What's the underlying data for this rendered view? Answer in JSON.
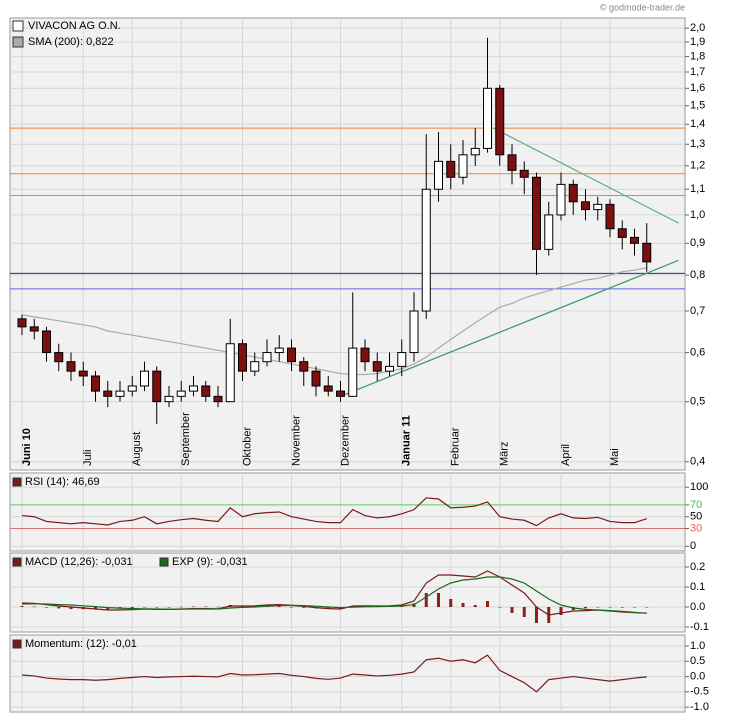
{
  "watermark": "© godmode-trader.de",
  "chart_data": [
    {
      "type": "candlestick",
      "name": "VIVACON AG O.N.",
      "log": true,
      "up_color": "#ffffff",
      "down_color": "#7a1010",
      "categories": [
        "Juni 10",
        null,
        null,
        null,
        null,
        "Juli",
        null,
        null,
        null,
        "August",
        null,
        null,
        null,
        "September",
        null,
        null,
        null,
        null,
        "Oktober",
        null,
        null,
        null,
        "November",
        null,
        null,
        null,
        "Dezember",
        null,
        null,
        null,
        null,
        "Januar 11",
        null,
        null,
        null,
        "Februar",
        null,
        null,
        null,
        "März",
        null,
        null,
        null,
        null,
        "April",
        null,
        null,
        null,
        "Mai",
        null,
        null,
        null
      ],
      "bold_labels": [
        0,
        31
      ],
      "open": [
        0.68,
        0.66,
        0.65,
        0.6,
        0.58,
        0.56,
        0.55,
        0.52,
        0.51,
        0.52,
        0.53,
        0.56,
        0.5,
        0.51,
        0.52,
        0.53,
        0.51,
        0.5,
        0.62,
        0.56,
        0.58,
        0.6,
        0.61,
        0.58,
        0.56,
        0.53,
        0.52,
        0.51,
        0.61,
        0.58,
        0.56,
        0.57,
        0.6,
        0.7,
        1.1,
        1.22,
        1.15,
        1.25,
        1.28,
        1.6,
        1.25,
        1.18,
        1.15,
        0.88,
        1.0,
        1.12,
        1.05,
        1.02,
        1.04,
        0.95,
        0.92,
        0.9
      ],
      "high": [
        0.69,
        0.68,
        0.66,
        0.62,
        0.6,
        0.58,
        0.56,
        0.54,
        0.54,
        0.55,
        0.58,
        0.57,
        0.53,
        0.54,
        0.55,
        0.54,
        0.53,
        0.68,
        0.63,
        0.6,
        0.63,
        0.64,
        0.63,
        0.59,
        0.57,
        0.55,
        0.54,
        0.75,
        0.63,
        0.6,
        0.6,
        0.63,
        0.75,
        1.35,
        1.36,
        1.3,
        1.32,
        1.38,
        1.93,
        1.62,
        1.3,
        1.22,
        1.17,
        1.05,
        1.17,
        1.14,
        1.1,
        1.07,
        1.06,
        0.98,
        0.95,
        0.97
      ],
      "low": [
        0.64,
        0.63,
        0.58,
        0.56,
        0.54,
        0.53,
        0.5,
        0.49,
        0.5,
        0.51,
        0.52,
        0.46,
        0.49,
        0.5,
        0.51,
        0.5,
        0.49,
        0.5,
        0.54,
        0.55,
        0.57,
        0.58,
        0.56,
        0.53,
        0.51,
        0.51,
        0.5,
        0.51,
        0.56,
        0.54,
        0.55,
        0.55,
        0.58,
        0.68,
        1.05,
        1.1,
        1.12,
        1.2,
        1.26,
        1.2,
        1.12,
        1.08,
        0.8,
        0.86,
        0.98,
        1.0,
        0.98,
        0.98,
        0.92,
        0.88,
        0.86,
        0.81
      ],
      "close": [
        0.66,
        0.65,
        0.6,
        0.58,
        0.56,
        0.55,
        0.52,
        0.51,
        0.52,
        0.53,
        0.56,
        0.5,
        0.51,
        0.52,
        0.53,
        0.51,
        0.5,
        0.62,
        0.56,
        0.58,
        0.6,
        0.61,
        0.58,
        0.56,
        0.53,
        0.52,
        0.51,
        0.61,
        0.58,
        0.56,
        0.57,
        0.6,
        0.7,
        1.1,
        1.22,
        1.15,
        1.25,
        1.28,
        1.6,
        1.25,
        1.18,
        1.15,
        0.88,
        1.0,
        1.12,
        1.05,
        1.02,
        1.04,
        0.95,
        0.92,
        0.9,
        0.84
      ],
      "series": [
        {
          "name": "SMA (200): 0,822",
          "color": "#aaaaaa",
          "values": [
            0.69,
            0.685,
            0.68,
            0.675,
            0.67,
            0.665,
            0.66,
            0.65,
            0.645,
            0.64,
            0.635,
            0.63,
            0.625,
            0.62,
            0.615,
            0.61,
            0.605,
            0.6,
            0.595,
            0.59,
            0.585,
            0.58,
            0.575,
            0.57,
            0.565,
            0.56,
            0.555,
            0.553,
            0.553,
            0.555,
            0.56,
            0.565,
            0.575,
            0.59,
            0.61,
            0.63,
            0.65,
            0.67,
            0.69,
            0.71,
            0.72,
            0.735,
            0.745,
            0.755,
            0.765,
            0.775,
            0.785,
            0.79,
            0.8,
            0.81,
            0.815,
            0.822
          ]
        }
      ],
      "ylim": [
        0.388,
        2.077
      ],
      "yticks": [
        {
          "value": 0.4,
          "label": "0,4"
        },
        {
          "value": 0.5,
          "label": "0,5"
        },
        {
          "value": 0.6,
          "label": "0,6"
        },
        {
          "value": 0.7,
          "label": "0,7"
        },
        {
          "value": 0.8,
          "label": "0,8"
        },
        {
          "value": 0.9,
          "label": "0,9"
        },
        {
          "value": 1.0,
          "label": "1,0"
        },
        {
          "value": 1.1,
          "label": "1,1"
        },
        {
          "value": 1.2,
          "label": "1,2"
        },
        {
          "value": 1.3,
          "label": "1,3"
        },
        {
          "value": 1.4,
          "label": "1,4"
        },
        {
          "value": 1.5,
          "label": "1,5"
        },
        {
          "value": 1.6,
          "label": "1,6"
        },
        {
          "value": 1.7,
          "label": "1,7"
        },
        {
          "value": 1.8,
          "label": "1,8"
        },
        {
          "value": 1.9,
          "label": "1,9"
        },
        {
          "value": 2.0,
          "label": "2,0"
        }
      ],
      "hlines": [
        {
          "value": 1.38,
          "color": "#e8843c"
        },
        {
          "value": 1.165,
          "color": "#e8843c"
        },
        {
          "value": 1.075,
          "color": "#e8843c"
        },
        {
          "value": 0.805,
          "color": "#2020c0"
        },
        {
          "value": 0.76,
          "color": "#6060e0"
        }
      ],
      "trendlines": [
        {
          "x": [
            26,
            53.6
          ],
          "y": [
            0.51,
            0.845
          ],
          "color": "#3a9a6a"
        },
        {
          "x": [
            38.5,
            53.6
          ],
          "y": [
            1.38,
            0.97
          ],
          "color": "#5aaa8a"
        }
      ],
      "grid": true
    },
    {
      "type": "line",
      "ylim": [
        -8,
        124
      ],
      "yticks": [
        0,
        30,
        50,
        70,
        100
      ],
      "ytick_colors": [
        "#000000",
        "#e06060",
        "#000000",
        "#40c040",
        "#000000"
      ],
      "hlines": [
        {
          "value": 70,
          "color": "#60d060"
        },
        {
          "value": 30,
          "color": "#e07070"
        }
      ],
      "series": [
        {
          "name": "RSI (14): 46,69",
          "color": "#7a1a1a",
          "values": [
            52,
            50,
            42,
            40,
            38,
            40,
            38,
            36,
            42,
            44,
            50,
            38,
            42,
            45,
            47,
            44,
            42,
            65,
            50,
            55,
            57,
            58,
            50,
            46,
            42,
            40,
            40,
            62,
            52,
            48,
            50,
            55,
            62,
            82,
            80,
            65,
            66,
            68,
            75,
            50,
            46,
            44,
            35,
            48,
            55,
            48,
            47,
            49,
            42,
            40,
            40,
            46.69
          ]
        }
      ]
    },
    {
      "type": "line",
      "ylim": [
        -0.125,
        0.27
      ],
      "yticks": [
        -0.1,
        {
          "value": 0,
          "label": "0.0"
        },
        0.1,
        0.2
      ],
      "histogram": {
        "color": "#8b2020",
        "values": [
          0.005,
          0.002,
          -0.003,
          -0.007,
          -0.01,
          -0.011,
          -0.012,
          -0.012,
          -0.009,
          -0.005,
          -0.001,
          -0.002,
          -0.001,
          0.001,
          0.002,
          0.002,
          0.001,
          0.01,
          0.007,
          0.006,
          0.006,
          0.005,
          0,
          -0.004,
          -0.007,
          -0.008,
          -0.007,
          0.006,
          0.005,
          0.003,
          0.003,
          0.005,
          0.018,
          0.07,
          0.07,
          0.04,
          0.02,
          0.01,
          0.03,
          0,
          -0.03,
          -0.05,
          -0.08,
          -0.08,
          -0.04,
          -0.015,
          -0.006,
          0,
          -0.002,
          -0.003,
          -0.001,
          0
        ]
      },
      "series": [
        {
          "name": "MACD (12,26): -0,031",
          "color": "#7a1a1a",
          "values": [
            0.02,
            0.018,
            0.012,
            0.005,
            0.0,
            -0.005,
            -0.01,
            -0.015,
            -0.015,
            -0.013,
            -0.01,
            -0.012,
            -0.012,
            -0.01,
            -0.008,
            -0.008,
            -0.009,
            0.005,
            0.005,
            0.006,
            0.01,
            0.012,
            0.008,
            0.003,
            -0.003,
            -0.008,
            -0.01,
            0.005,
            0.006,
            0.005,
            0.006,
            0.01,
            0.03,
            0.12,
            0.16,
            0.16,
            0.155,
            0.15,
            0.18,
            0.15,
            0.11,
            0.07,
            0.0,
            -0.04,
            -0.03,
            -0.02,
            -0.018,
            -0.015,
            -0.02,
            -0.025,
            -0.028,
            -0.031
          ]
        },
        {
          "name": "EXP (9): -0,031",
          "color": "#1a6a1a",
          "values": [
            0.015,
            0.016,
            0.015,
            0.012,
            0.01,
            0.006,
            0.002,
            -0.003,
            -0.006,
            -0.008,
            -0.009,
            -0.01,
            -0.011,
            -0.011,
            -0.01,
            -0.01,
            -0.01,
            -0.005,
            -0.002,
            0.0,
            0.004,
            0.007,
            0.008,
            0.007,
            0.004,
            0.0,
            -0.003,
            -0.001,
            0.001,
            0.002,
            0.003,
            0.005,
            0.012,
            0.05,
            0.09,
            0.12,
            0.135,
            0.14,
            0.15,
            0.15,
            0.14,
            0.12,
            0.08,
            0.04,
            0.01,
            -0.005,
            -0.012,
            -0.015,
            -0.018,
            -0.022,
            -0.027,
            -0.031
          ]
        }
      ]
    },
    {
      "type": "line",
      "ylim": [
        -1.16,
        1.36
      ],
      "yticks": [
        {
          "value": -1,
          "label": "-1.0"
        },
        -0.5,
        {
          "value": 0,
          "label": "0.0"
        },
        0.5,
        {
          "value": 1,
          "label": "1.0"
        }
      ],
      "series": [
        {
          "name": "Momentum: (12): -0,01",
          "color": "#7a1a1a",
          "values": [
            0.05,
            0.02,
            -0.05,
            -0.08,
            -0.1,
            -0.1,
            -0.12,
            -0.1,
            -0.06,
            -0.03,
            0.0,
            -0.03,
            -0.01,
            0.0,
            0.01,
            0.0,
            -0.01,
            0.1,
            0.05,
            0.06,
            0.08,
            0.1,
            0.04,
            0.0,
            -0.06,
            -0.09,
            -0.05,
            0.08,
            0.05,
            0.02,
            0.04,
            0.08,
            0.15,
            0.55,
            0.6,
            0.5,
            0.55,
            0.45,
            0.7,
            0.2,
            0.0,
            -0.2,
            -0.5,
            -0.1,
            -0.05,
            0.0,
            -0.05,
            -0.1,
            -0.15,
            -0.1,
            -0.05,
            -0.01
          ]
        }
      ]
    }
  ]
}
